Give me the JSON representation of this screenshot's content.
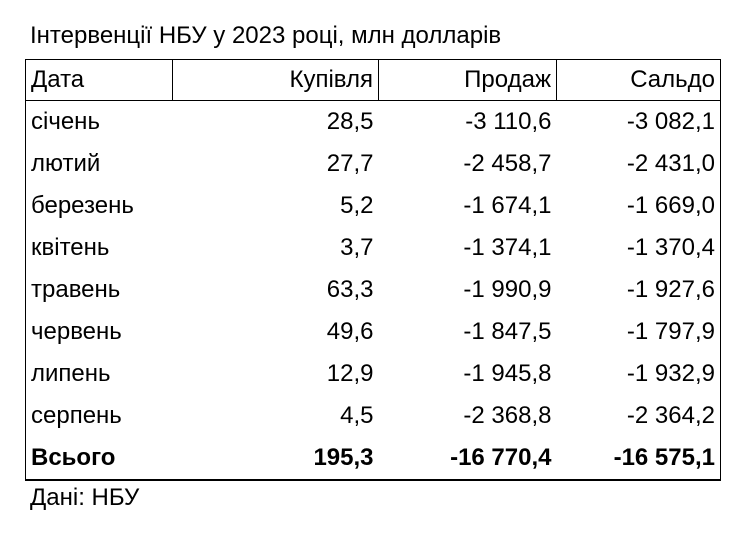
{
  "title": "Інтервенції НБУ у 2023 році, млн долларів",
  "table": {
    "header": [
      "Дата",
      "Купівля",
      "Продаж",
      "Сальдо"
    ],
    "rows": [
      [
        "січень",
        "28,5",
        "-3 110,6",
        "-3 082,1"
      ],
      [
        "лютий",
        "27,7",
        "-2 458,7",
        "-2 431,0"
      ],
      [
        "березень",
        "5,2",
        "-1 674,1",
        "-1 669,0"
      ],
      [
        "квітень",
        "3,7",
        "-1 374,1",
        "-1 370,4"
      ],
      [
        "травень",
        "63,3",
        "-1 990,9",
        "-1 927,6"
      ],
      [
        "червень",
        "49,6",
        "-1 847,5",
        "-1 797,9"
      ],
      [
        "липень",
        "12,9",
        "-1 945,8",
        "-1 932,9"
      ],
      [
        "серпень",
        "4,5",
        "-2 368,8",
        "-2 364,2"
      ]
    ],
    "total": [
      "Всього",
      "195,3",
      "-16 770,4",
      "-16 575,1"
    ]
  },
  "source": "Дані: НБУ"
}
